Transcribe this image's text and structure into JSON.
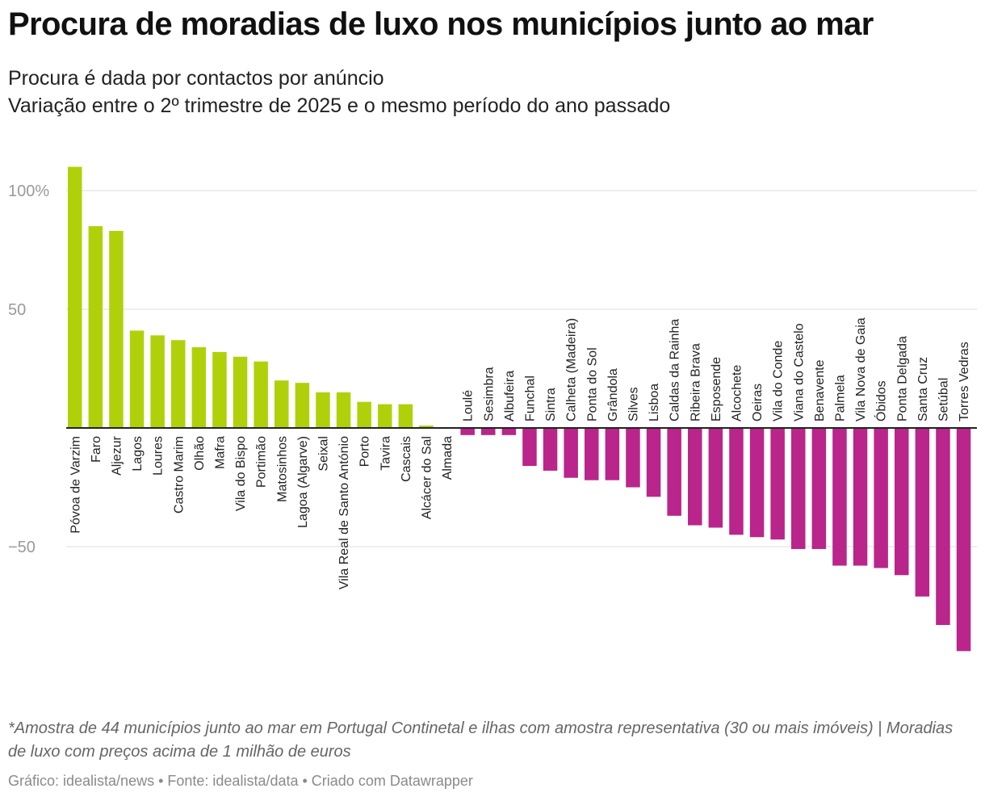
{
  "title": "Procura de moradias de luxo nos municípios junto ao mar",
  "subtitle": {
    "line1": "Procura é dada por contactos por anúncio",
    "line2": "Variação entre o 2º trimestre de 2025 e o mesmo período do ano passado"
  },
  "chart_data": {
    "type": "bar",
    "title": "Procura de moradias de luxo nos municípios junto ao mar",
    "xlabel": "",
    "ylabel": "",
    "ylim": [
      -94,
      110
    ],
    "yticks": [
      100,
      50,
      -50
    ],
    "ytick_labels": [
      "100%",
      "50",
      "−50"
    ],
    "grid": true,
    "colors": {
      "positive": "#b0d10a",
      "negative": "#b9258a",
      "axis": "#222222"
    },
    "categories": [
      "Póvoa de Varzim",
      "Faro",
      "Aljezur",
      "Lagos",
      "Loures",
      "Castro Marim",
      "Olhão",
      "Mafra",
      "Vila do Bispo",
      "Portimão",
      "Matosinhos",
      "Lagoa (Algarve)",
      "Seixal",
      "Vila Real de Santo António",
      "Porto",
      "Tavira",
      "Cascais",
      "Alcácer do Sal",
      "Almada",
      "Loulé",
      "Sesimbra",
      "Albufeira",
      "Funchal",
      "Sintra",
      "Calheta (Madeira)",
      "Ponta do Sol",
      "Grândola",
      "Silves",
      "Lisboa",
      "Caldas da Rainha",
      "Ribeira Brava",
      "Esposende",
      "Alcochete",
      "Oeiras",
      "Vila do Conde",
      "Viana do Castelo",
      "Benavente",
      "Palmela",
      "Vila Nova de Gaia",
      "Óbidos",
      "Ponta Delgada",
      "Santa Cruz",
      "Setúbal",
      "Torres Vedras"
    ],
    "values": [
      110,
      85,
      83,
      41,
      39,
      37,
      34,
      32,
      30,
      28,
      20,
      19,
      15,
      15,
      11,
      10,
      10,
      1,
      0,
      -3,
      -3,
      -3,
      -16,
      -18,
      -21,
      -22,
      -22,
      -25,
      -29,
      -37,
      -41,
      -42,
      -45,
      -46,
      -47,
      -51,
      -51,
      -58,
      -58,
      -59,
      -62,
      -71,
      -83,
      -94
    ]
  },
  "notes": "*Amostra de 44 municípios junto ao mar em Portugal Continetal e ilhas com amostra representativa (30 ou mais imóveis) | Moradias de luxo com preços acima de 1 milhão de euros",
  "credits": "Gráfico: idealista/news • Fonte: idealista/data • Criado com Datawrapper"
}
